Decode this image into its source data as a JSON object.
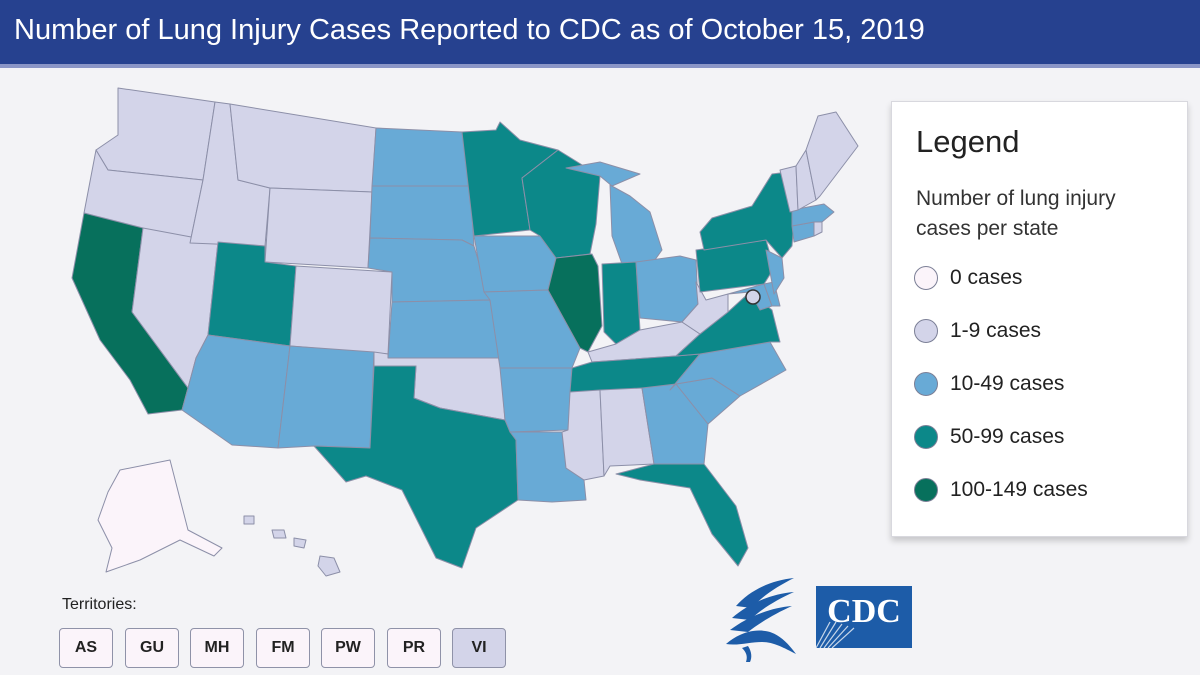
{
  "header": {
    "title": "Number of Lung Injury Cases Reported to CDC as of October 15, 2019"
  },
  "colors": {
    "c0": "#fbf4fa",
    "c1": "#d3d4e9",
    "c2": "#68aad6",
    "c3": "#0c8889",
    "c4": "#07705c",
    "header_bg": "#26418f"
  },
  "legend": {
    "title": "Legend",
    "subtitle": "Number of lung injury cases per state",
    "items": [
      {
        "label": "0 cases",
        "color": "#fbf4fa"
      },
      {
        "label": "1-9 cases",
        "color": "#d3d4e9"
      },
      {
        "label": "10-49 cases",
        "color": "#68aad6"
      },
      {
        "label": "50-99 cases",
        "color": "#0c8889"
      },
      {
        "label": "100-149 cases",
        "color": "#07705c"
      }
    ]
  },
  "states": [
    {
      "id": "WA",
      "cat": 1
    },
    {
      "id": "OR",
      "cat": 1
    },
    {
      "id": "CA",
      "cat": 4
    },
    {
      "id": "NV",
      "cat": 1
    },
    {
      "id": "ID",
      "cat": 1
    },
    {
      "id": "MT",
      "cat": 1
    },
    {
      "id": "WY",
      "cat": 1
    },
    {
      "id": "UT",
      "cat": 3
    },
    {
      "id": "AZ",
      "cat": 2
    },
    {
      "id": "CO",
      "cat": 1
    },
    {
      "id": "NM",
      "cat": 2
    },
    {
      "id": "ND",
      "cat": 2
    },
    {
      "id": "SD",
      "cat": 2
    },
    {
      "id": "NE",
      "cat": 2
    },
    {
      "id": "KS",
      "cat": 2
    },
    {
      "id": "OK",
      "cat": 1
    },
    {
      "id": "TX",
      "cat": 3
    },
    {
      "id": "MN",
      "cat": 3
    },
    {
      "id": "IA",
      "cat": 2
    },
    {
      "id": "MO",
      "cat": 2
    },
    {
      "id": "AR",
      "cat": 2
    },
    {
      "id": "LA",
      "cat": 2
    },
    {
      "id": "WI",
      "cat": 3
    },
    {
      "id": "IL",
      "cat": 4
    },
    {
      "id": "MI",
      "cat": 2
    },
    {
      "id": "IN",
      "cat": 3
    },
    {
      "id": "OH",
      "cat": 2
    },
    {
      "id": "KY",
      "cat": 1
    },
    {
      "id": "TN",
      "cat": 3
    },
    {
      "id": "MS",
      "cat": 1
    },
    {
      "id": "AL",
      "cat": 1
    },
    {
      "id": "GA",
      "cat": 2
    },
    {
      "id": "FL",
      "cat": 3
    },
    {
      "id": "SC",
      "cat": 2
    },
    {
      "id": "NC",
      "cat": 2
    },
    {
      "id": "VA",
      "cat": 3
    },
    {
      "id": "WV",
      "cat": 1
    },
    {
      "id": "MD",
      "cat": 2
    },
    {
      "id": "DE",
      "cat": 2
    },
    {
      "id": "PA",
      "cat": 3
    },
    {
      "id": "NJ",
      "cat": 2
    },
    {
      "id": "NY",
      "cat": 3
    },
    {
      "id": "CT",
      "cat": 2
    },
    {
      "id": "RI",
      "cat": 1
    },
    {
      "id": "MA",
      "cat": 2
    },
    {
      "id": "VT",
      "cat": 1
    },
    {
      "id": "NH",
      "cat": 1
    },
    {
      "id": "ME",
      "cat": 1
    },
    {
      "id": "AK",
      "cat": 0
    },
    {
      "id": "HI",
      "cat": 1
    },
    {
      "id": "DC",
      "cat": 1
    }
  ],
  "territories": {
    "label": "Territories:",
    "items": [
      {
        "code": "AS",
        "cat": 0
      },
      {
        "code": "GU",
        "cat": 0
      },
      {
        "code": "MH",
        "cat": 0
      },
      {
        "code": "FM",
        "cat": 0
      },
      {
        "code": "PW",
        "cat": 0
      },
      {
        "code": "PR",
        "cat": 0
      },
      {
        "code": "VI",
        "cat": 1
      }
    ]
  },
  "logos": {
    "cdc_text": "CDC",
    "hhs_icon": "hhs-eagle-icon"
  }
}
